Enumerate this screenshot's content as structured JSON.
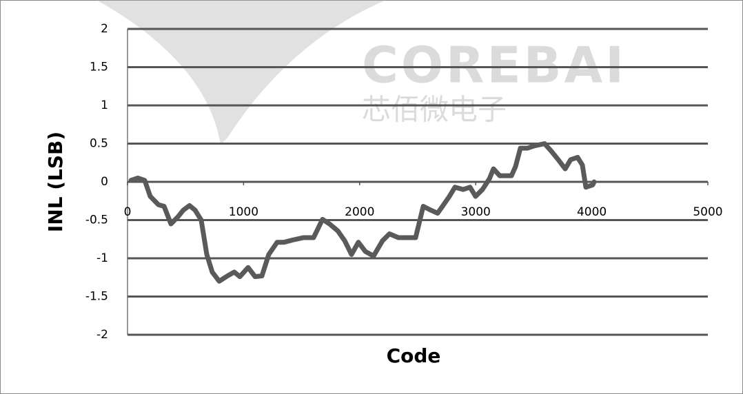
{
  "chart_data": {
    "type": "line",
    "xlabel": "Code",
    "ylabel": "INL (LSB)",
    "watermark": [
      "COREBAI",
      "芯佰微电子"
    ],
    "x": [
      30,
      89,
      148,
      196,
      267,
      315,
      374,
      433,
      481,
      534,
      582,
      635,
      683,
      730,
      790,
      861,
      920,
      968,
      1039,
      1099,
      1158,
      1217,
      1289,
      1348,
      1425,
      1514,
      1603,
      1680,
      1740,
      1811,
      1871,
      1930,
      1989,
      2049,
      2120,
      2197,
      2257,
      2334,
      2417,
      2482,
      2548,
      2613,
      2672,
      2732,
      2773,
      2821,
      2892,
      2951,
      2999,
      3058,
      3118,
      3153,
      3207,
      3266,
      3308,
      3343,
      3385,
      3444,
      3504,
      3593,
      3652,
      3711,
      3771,
      3818,
      3878,
      3919,
      3949,
      4008,
      4020
    ],
    "series": [
      {
        "name": "INL",
        "color": "#5a5a5a",
        "values": [
          0.02,
          0.05,
          0.02,
          -0.19,
          -0.3,
          -0.32,
          -0.55,
          -0.46,
          -0.37,
          -0.31,
          -0.37,
          -0.5,
          -0.95,
          -1.18,
          -1.3,
          -1.23,
          -1.18,
          -1.24,
          -1.12,
          -1.24,
          -1.23,
          -0.95,
          -0.79,
          -0.79,
          -0.76,
          -0.73,
          -0.73,
          -0.49,
          -0.55,
          -0.64,
          -0.77,
          -0.95,
          -0.79,
          -0.91,
          -0.97,
          -0.77,
          -0.68,
          -0.73,
          -0.73,
          -0.73,
          -0.32,
          -0.37,
          -0.41,
          -0.28,
          -0.19,
          -0.07,
          -0.1,
          -0.07,
          -0.19,
          -0.1,
          0.04,
          0.17,
          0.08,
          0.08,
          0.08,
          0.2,
          0.44,
          0.44,
          0.47,
          0.5,
          0.4,
          0.29,
          0.17,
          0.29,
          0.32,
          0.22,
          -0.07,
          -0.04,
          0
        ]
      }
    ],
    "xlim": [
      0,
      5000
    ],
    "xticks": [
      0,
      1000,
      2000,
      3000,
      4000,
      5000
    ],
    "ylim": [
      -2,
      2
    ],
    "yticks": [
      2,
      1.5,
      1,
      0.5,
      0,
      -0.5,
      -1,
      -1.5,
      -2
    ],
    "grid": true,
    "grid_color": "#555555"
  }
}
